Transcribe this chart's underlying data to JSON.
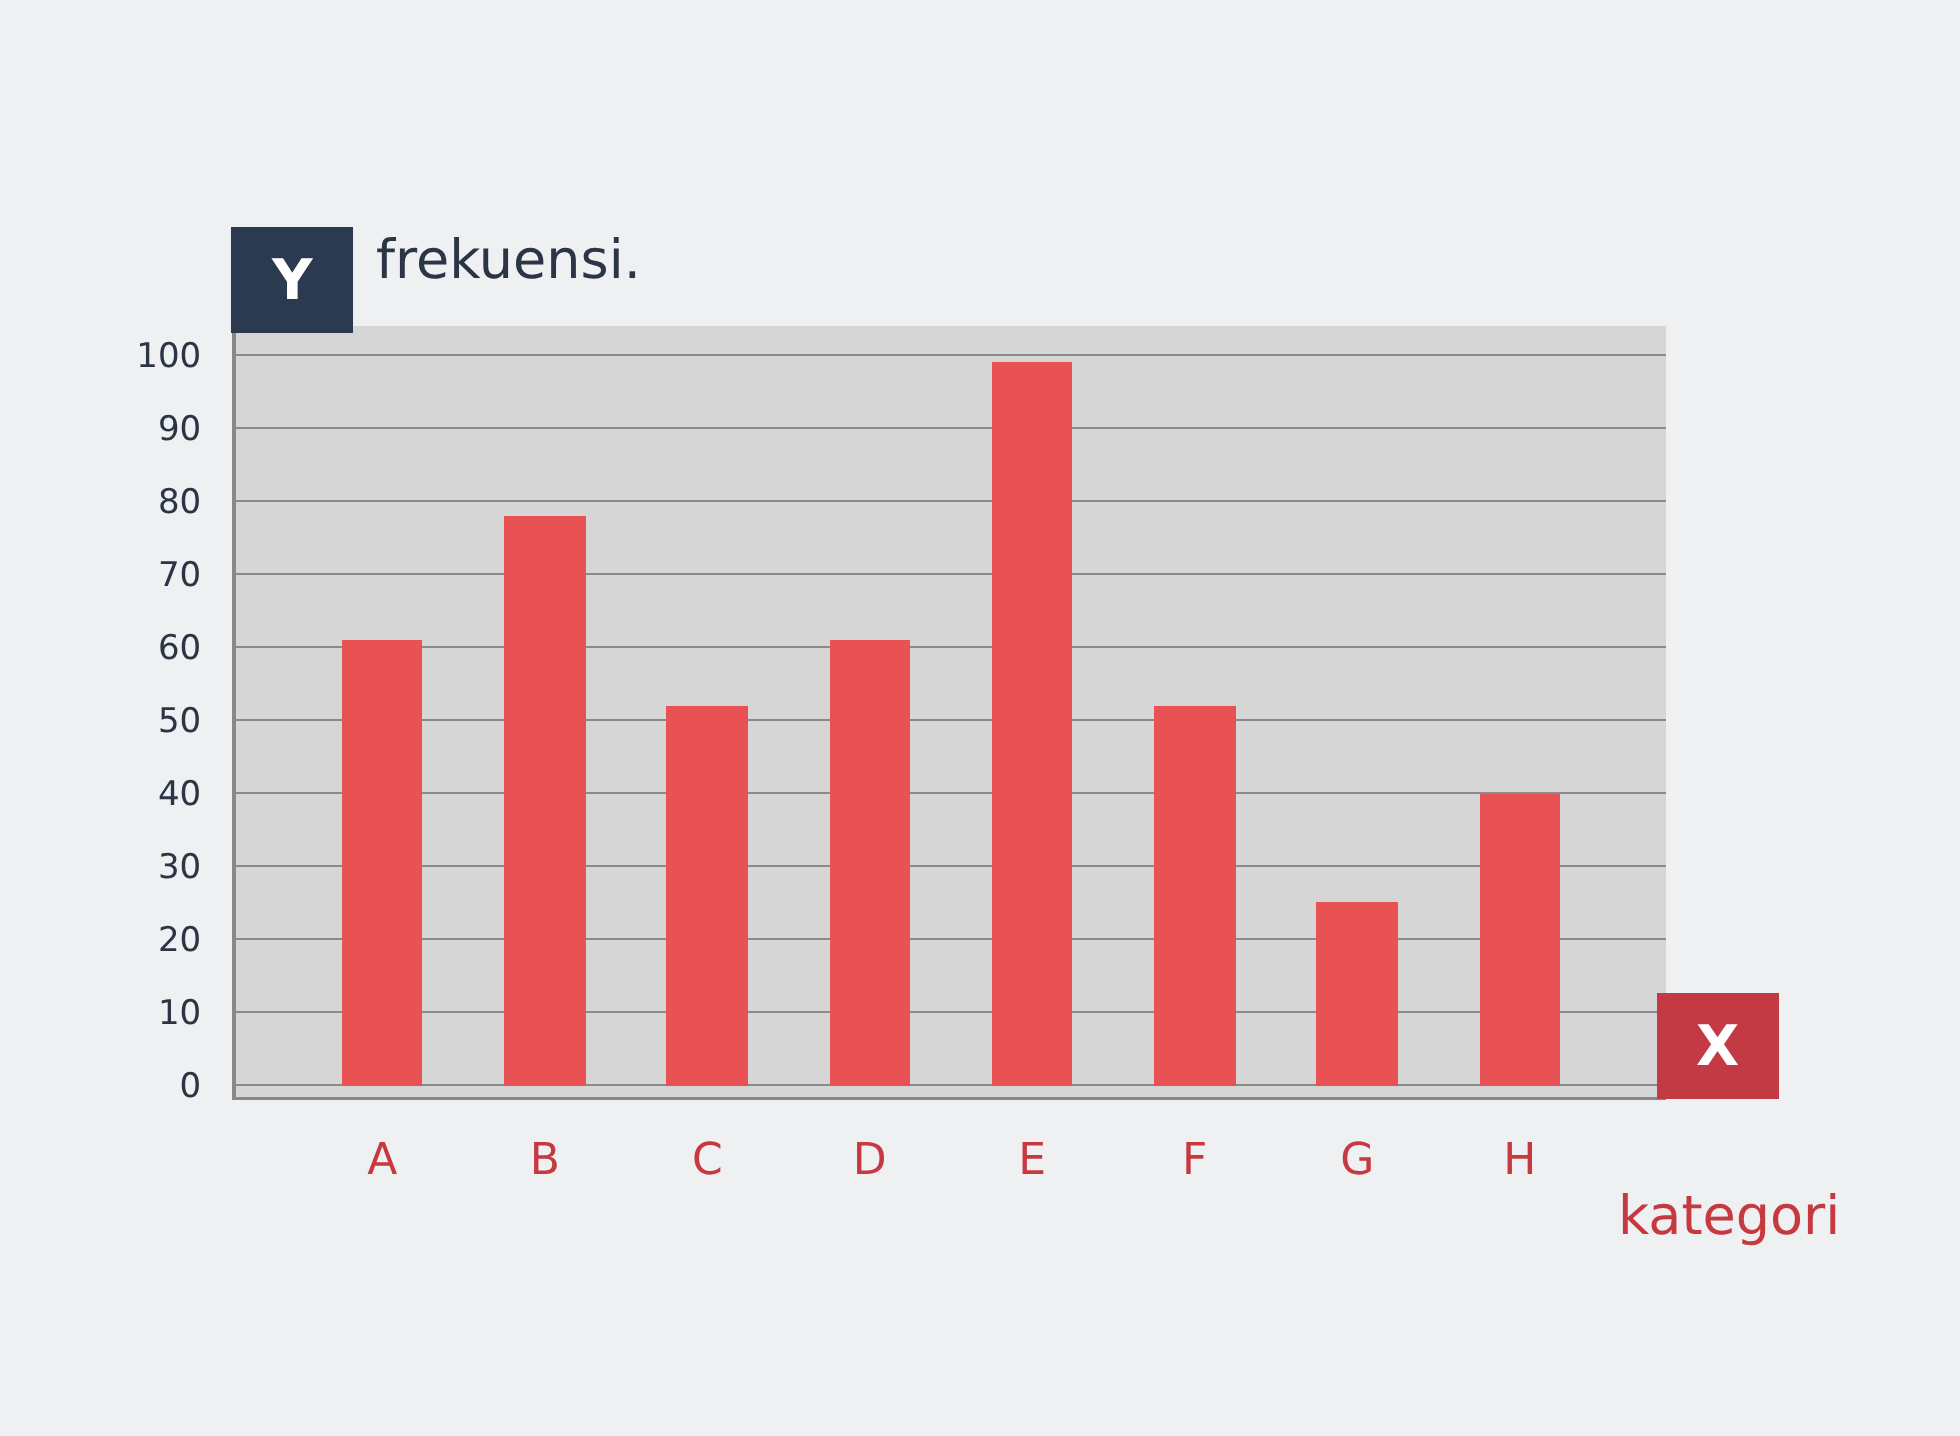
{
  "chart_data": {
    "type": "bar",
    "xlabel": "kategori",
    "ylabel": "frekuensi.",
    "annotations": [
      "Y",
      "X"
    ],
    "categories": [
      "A",
      "B",
      "C",
      "D",
      "E",
      "F",
      "G",
      "H"
    ],
    "values": [
      61,
      78,
      52,
      61,
      99,
      52,
      25,
      40
    ],
    "color": "#e85255",
    "ylim": [
      -2,
      104
    ],
    "yticks": [
      0,
      10,
      20,
      30,
      40,
      50,
      60,
      70,
      80,
      90,
      100
    ],
    "grid": "y"
  }
}
